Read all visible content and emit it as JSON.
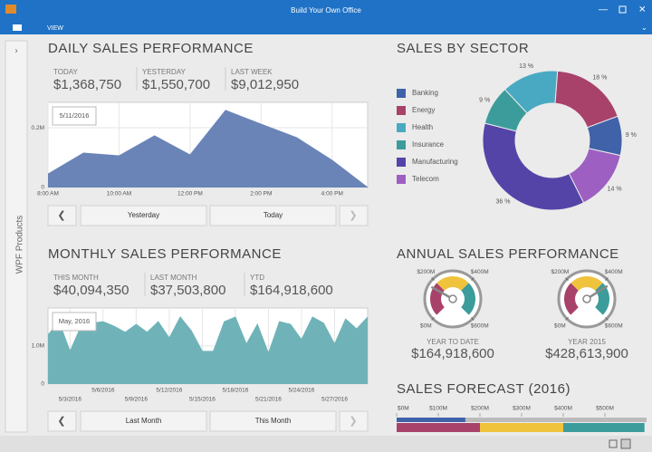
{
  "window": {
    "title": "Build Your Own Office",
    "menu": "VIEW",
    "sidebar": "WPF Products"
  },
  "daily": {
    "title": "DAILY SALES PERFORMANCE",
    "kpis": [
      {
        "label": "TODAY",
        "value": "$1,368,750"
      },
      {
        "label": "YESTERDAY",
        "value": "$1,550,700"
      },
      {
        "label": "LAST WEEK",
        "value": "$9,012,950"
      }
    ],
    "chart": {
      "type": "area",
      "color": "#6a84b8",
      "tooltip": "5/11/2016",
      "x": [
        8,
        9,
        10,
        11,
        12,
        13,
        14,
        15,
        16,
        17
      ],
      "values": [
        45000,
        115000,
        106000,
        173000,
        109000,
        258000,
        212000,
        167000,
        91000,
        0
      ],
      "xlim": [
        8,
        17
      ],
      "xticks": [
        {
          "value": 8,
          "label": "8:00 AM"
        },
        {
          "value": 10,
          "label": "10:00 AM"
        },
        {
          "value": 12,
          "label": "12:00 PM"
        },
        {
          "value": 14,
          "label": "2:00 PM"
        },
        {
          "value": 16,
          "label": "4:00 PM"
        }
      ],
      "ylim": [
        0,
        285000
      ],
      "yticks": [
        0,
        {
          "value": 200000,
          "label": "0.2M"
        }
      ],
      "grid": true
    },
    "buttons": [
      "Yesterday",
      "Today"
    ]
  },
  "monthly": {
    "title": "MONTHLY SALES PERFORMANCE",
    "kpis": [
      {
        "label": "THIS MONTH",
        "value": "$40,094,350"
      },
      {
        "label": "LAST MONTH",
        "value": "$37,503,800"
      },
      {
        "label": "YTD",
        "value": "$164,918,600"
      }
    ],
    "chart": {
      "type": "area",
      "color": "#6fb3b8",
      "tooltip": "May, 2016",
      "x": [
        1,
        2,
        3,
        4,
        5,
        6,
        7,
        8,
        9,
        10,
        11,
        12,
        13,
        14,
        15,
        16,
        17,
        18,
        19,
        20,
        21,
        22,
        23,
        24,
        25,
        26,
        27,
        28,
        29,
        30
      ],
      "values": [
        1290000,
        1640000,
        860000,
        1520000,
        1600000,
        1640000,
        1520000,
        1360000,
        1570000,
        1360000,
        1640000,
        1210000,
        1760000,
        1400000,
        860000,
        860000,
        1640000,
        1760000,
        1050000,
        1570000,
        810000,
        1640000,
        1570000,
        1170000,
        1760000,
        1600000,
        1050000,
        1710000,
        1450000,
        1760000
      ],
      "xlim": [
        1,
        30
      ],
      "xticks": [
        {
          "value": 3,
          "label": "5/3/2016"
        },
        {
          "value": 6,
          "label": "5/6/2016"
        },
        {
          "value": 9,
          "label": "5/9/2016"
        },
        {
          "value": 12,
          "label": "5/12/2016"
        },
        {
          "value": 15,
          "label": "5/15/2016"
        },
        {
          "value": 18,
          "label": "5/18/2016"
        },
        {
          "value": 21,
          "label": "5/21/2016"
        },
        {
          "value": 24,
          "label": "5/24/2016"
        },
        {
          "value": 27,
          "label": "5/27/2016"
        }
      ],
      "ylim": [
        0,
        2000000
      ],
      "yticks": [
        0,
        {
          "value": 1000000,
          "label": "1.0M"
        }
      ],
      "grid": true
    },
    "buttons": [
      "Last Month",
      "This Month"
    ]
  },
  "sector": {
    "title": "SALES BY SECTOR",
    "chart": {
      "type": "donut",
      "categories": [
        "Banking",
        "Energy",
        "Health",
        "Insurance",
        "Manufacturing",
        "Telecom"
      ],
      "values": [
        9,
        18,
        13,
        9,
        36,
        14
      ],
      "value_labels": [
        "9 %",
        "18 %",
        "13 %",
        "9 %",
        "36 %",
        "14 %"
      ],
      "colors": [
        "#3f62a8",
        "#a8426b",
        "#4aa9c2",
        "#3c9c9c",
        "#5544a8",
        "#9d5fc2"
      ]
    }
  },
  "annual": {
    "title": "ANNUAL SALES PERFORMANCE",
    "scale": {
      "lim": [
        0,
        600000000
      ],
      "ticks": [
        {
          "value": 0,
          "label": "$0M"
        },
        {
          "value": 200000000,
          "label": "$200M"
        },
        {
          "value": 400000000,
          "label": "$400M"
        },
        {
          "value": 600000000,
          "label": "$600M"
        }
      ]
    },
    "bands": [
      {
        "from": 0,
        "to": 200000000,
        "color": "#a8426b"
      },
      {
        "from": 200000000,
        "to": 400000000,
        "color": "#f0c33c"
      },
      {
        "from": 400000000,
        "to": 600000000,
        "color": "#3c9c9c"
      }
    ],
    "gauges": [
      {
        "label": "YEAR TO DATE",
        "value": 164918600,
        "value_label": "$164,918,600"
      },
      {
        "label": "YEAR 2015",
        "value": 428613900,
        "value_label": "$428,613,900"
      }
    ]
  },
  "forecast": {
    "title": "SALES FORECAST (2016)",
    "chart": {
      "type": "bullet",
      "xlim": [
        0,
        600000000
      ],
      "xticks": [
        {
          "value": 0,
          "label": "$0M"
        },
        {
          "value": 100000000,
          "label": "$100M"
        },
        {
          "value": 200000000,
          "label": "$200M"
        },
        {
          "value": 300000000,
          "label": "$300M"
        },
        {
          "value": 400000000,
          "label": "$400M"
        },
        {
          "value": 500000000,
          "label": "$500M"
        }
      ],
      "segments": [
        200000000,
        200000000,
        195000000
      ],
      "segment_colors": [
        "#a8426b",
        "#f0c33c",
        "#3c9c9c"
      ],
      "actual": 164918600,
      "actual_color": "#3f62a8"
    }
  }
}
